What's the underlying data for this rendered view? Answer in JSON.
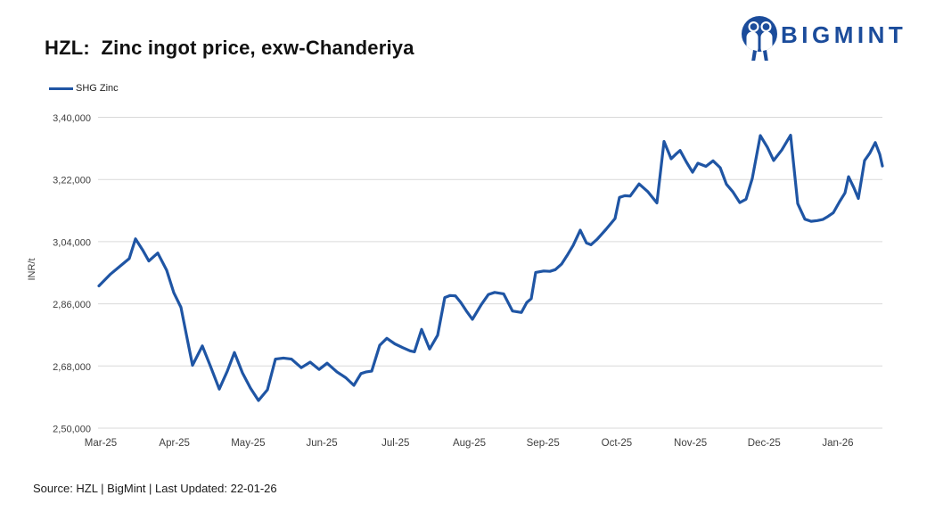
{
  "header": {
    "title": "HZL:  Zinc ingot price, exw-Chanderiya"
  },
  "brand": {
    "name": "BIGMINT",
    "color": "#1b4c9b"
  },
  "legend": {
    "label": "SHG Zinc",
    "color": "#1f55a4"
  },
  "footer": {
    "text": "Source: HZL | BigMint | Last Updated: 22-01-26"
  },
  "chart_data": {
    "type": "line",
    "title": "HZL: Zinc ingot price, exw-Chanderiya",
    "xlabel": "",
    "ylabel": "INR/t",
    "ylim": [
      250000,
      340000
    ],
    "grid": "horizontal",
    "legend_position": "top-left",
    "background": "#ffffff",
    "gridline_color": "#d9d9d9",
    "tick_label_color": "#404040",
    "y_ticks": [
      {
        "label": "2,50,000",
        "value": 250000
      },
      {
        "label": "2,68,000",
        "value": 268000
      },
      {
        "label": "2,86,000",
        "value": 286000
      },
      {
        "label": "3,04,000",
        "value": 304000
      },
      {
        "label": "3,22,000",
        "value": 322000
      },
      {
        "label": "3,40,000",
        "value": 340000
      }
    ],
    "x_tick_labels": [
      "Mar-25",
      "Apr-25",
      "May-25",
      "Jun-25",
      "Jul-25",
      "Aug-25",
      "Sep-25",
      "Oct-25",
      "Nov-25",
      "Dec-25",
      "Jan-26"
    ],
    "series": [
      {
        "name": "SHG Zinc",
        "color": "#1f55a4",
        "stroke_width": 3.2,
        "points": [
          [
            111,
            291200
          ],
          [
            124,
            294600
          ],
          [
            137,
            297400
          ],
          [
            145,
            299100
          ],
          [
            152,
            304800
          ],
          [
            160,
            301600
          ],
          [
            167,
            298400
          ],
          [
            177,
            300700
          ],
          [
            187,
            295700
          ],
          [
            195,
            289200
          ],
          [
            203,
            285000
          ],
          [
            210,
            275900
          ],
          [
            216,
            268200
          ],
          [
            227,
            273800
          ],
          [
            236,
            268000
          ],
          [
            246,
            261300
          ],
          [
            255,
            266500
          ],
          [
            263,
            271900
          ],
          [
            272,
            266000
          ],
          [
            281,
            261600
          ],
          [
            290,
            258000
          ],
          [
            300,
            261100
          ],
          [
            309,
            270000
          ],
          [
            318,
            270300
          ],
          [
            327,
            270000
          ],
          [
            338,
            267500
          ],
          [
            348,
            269100
          ],
          [
            358,
            267000
          ],
          [
            367,
            268800
          ],
          [
            378,
            266300
          ],
          [
            388,
            264600
          ],
          [
            397,
            262400
          ],
          [
            405,
            265800
          ],
          [
            411,
            266300
          ],
          [
            417,
            266500
          ],
          [
            426,
            274000
          ],
          [
            434,
            276000
          ],
          [
            443,
            274400
          ],
          [
            452,
            273300
          ],
          [
            460,
            272400
          ],
          [
            465,
            272100
          ],
          [
            473,
            278600
          ],
          [
            482,
            272900
          ],
          [
            491,
            276900
          ],
          [
            499,
            287800
          ],
          [
            505,
            288400
          ],
          [
            511,
            288300
          ],
          [
            517,
            286400
          ],
          [
            523,
            284000
          ],
          [
            530,
            281500
          ],
          [
            540,
            285800
          ],
          [
            548,
            288700
          ],
          [
            555,
            289300
          ],
          [
            565,
            288900
          ],
          [
            575,
            283900
          ],
          [
            585,
            283500
          ],
          [
            591,
            286400
          ],
          [
            596,
            287500
          ],
          [
            601,
            295100
          ],
          [
            610,
            295500
          ],
          [
            617,
            295400
          ],
          [
            623,
            295900
          ],
          [
            630,
            297500
          ],
          [
            637,
            300300
          ],
          [
            643,
            302900
          ],
          [
            651,
            307300
          ],
          [
            658,
            303600
          ],
          [
            663,
            303100
          ],
          [
            670,
            304700
          ],
          [
            680,
            307600
          ],
          [
            690,
            310700
          ],
          [
            695,
            316800
          ],
          [
            701,
            317300
          ],
          [
            707,
            317200
          ],
          [
            717,
            320700
          ],
          [
            727,
            318400
          ],
          [
            737,
            315200
          ],
          [
            745,
            333000
          ],
          [
            753,
            328000
          ],
          [
            759,
            329500
          ],
          [
            763,
            330400
          ],
          [
            770,
            327100
          ],
          [
            777,
            324100
          ],
          [
            783,
            326700
          ],
          [
            792,
            325800
          ],
          [
            800,
            327400
          ],
          [
            808,
            325400
          ],
          [
            815,
            320600
          ],
          [
            822,
            318500
          ],
          [
            830,
            315300
          ],
          [
            837,
            316300
          ],
          [
            844,
            322300
          ],
          [
            853,
            334700
          ],
          [
            861,
            331300
          ],
          [
            868,
            327500
          ],
          [
            877,
            330500
          ],
          [
            887,
            334800
          ],
          [
            895,
            315000
          ],
          [
            903,
            310500
          ],
          [
            910,
            309900
          ],
          [
            917,
            310100
          ],
          [
            923,
            310400
          ],
          [
            929,
            311300
          ],
          [
            935,
            312400
          ],
          [
            942,
            315600
          ],
          [
            948,
            318100
          ],
          [
            952,
            322800
          ],
          [
            958,
            319600
          ],
          [
            963,
            316500
          ],
          [
            970,
            327500
          ],
          [
            976,
            329700
          ],
          [
            982,
            332700
          ],
          [
            987,
            329300
          ],
          [
            990,
            325900
          ]
        ]
      }
    ]
  }
}
